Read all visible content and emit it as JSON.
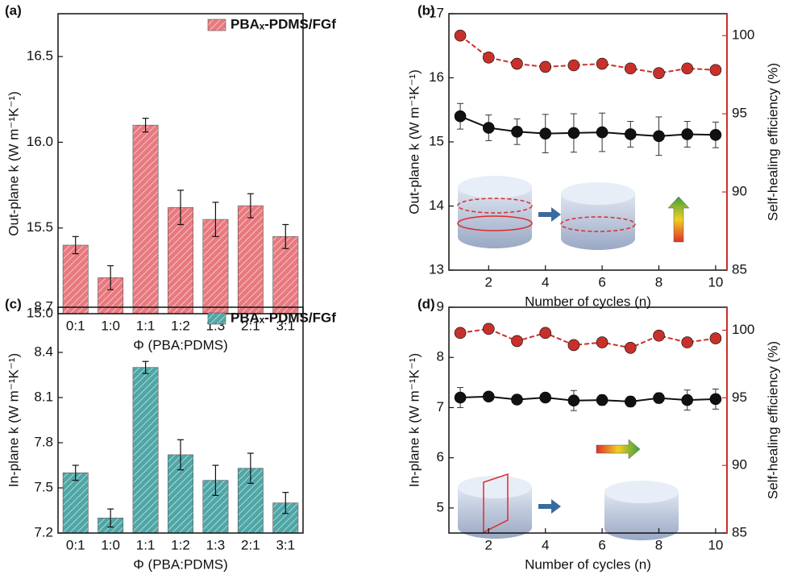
{
  "chart_data": [
    {
      "type": "bar",
      "title": "(a)",
      "xlabel": "Φ (PBA:PDMS)",
      "ylabel": "Out-plane k (W m⁻¹K⁻¹)",
      "categories": [
        "0:1",
        "1:0",
        "1:1",
        "1:2",
        "1:3",
        "2:1",
        "3:1"
      ],
      "series": [
        {
          "name": "PBAₓ-PDMS/FGf",
          "color": "#e8797f",
          "values": [
            15.4,
            15.21,
            16.1,
            15.62,
            15.55,
            15.63,
            15.45
          ],
          "errors": [
            0.05,
            0.07,
            0.04,
            0.1,
            0.1,
            0.07,
            0.07
          ]
        }
      ],
      "ylim": [
        15.0,
        16.75
      ],
      "yticks": [
        {
          "value": 15,
          "label": "15.0"
        },
        15.5,
        {
          "value": 16,
          "label": "16.0"
        },
        16.5
      ],
      "legend": "upper right"
    },
    {
      "type": "line",
      "title": "(b)",
      "xlabel": "Number of cycles (n)",
      "ylabel": "Out-plane k (W m⁻¹K⁻¹)",
      "y2label": "Self-healing efficiency (%)",
      "x": [
        1,
        2,
        3,
        4,
        5,
        6,
        7,
        8,
        9,
        10
      ],
      "series": [
        {
          "color": "#111111",
          "values": [
            15.4,
            15.22,
            15.16,
            15.13,
            15.14,
            15.15,
            15.12,
            15.09,
            15.12,
            15.11
          ],
          "errors": [
            0.2,
            0.2,
            0.2,
            0.3,
            0.3,
            0.3,
            0.2,
            0.3,
            0.2,
            0.2
          ]
        },
        {
          "color": "#c8312b",
          "axis": "y2",
          "values": [
            100.0,
            98.6,
            98.2,
            98.0,
            98.1,
            98.2,
            97.9,
            97.6,
            97.9,
            97.8
          ]
        }
      ],
      "xlim": [
        0.6,
        10.4
      ],
      "xticks": [
        2,
        4,
        6,
        8,
        10
      ],
      "ylim": [
        13,
        17
      ],
      "yticks": [
        13,
        14,
        15,
        16,
        17
      ],
      "y2lim": [
        85,
        101.4
      ],
      "y2ticks": [
        85,
        90,
        95,
        100
      ]
    },
    {
      "type": "bar",
      "title": "(c)",
      "xlabel": "Φ (PBA:PDMS)",
      "ylabel": "In-plane k (W m⁻¹K⁻¹)",
      "categories": [
        "0:1",
        "1:0",
        "1:1",
        "1:2",
        "1:3",
        "2:1",
        "3:1"
      ],
      "series": [
        {
          "name": "PBAₓ-PDMS/FGf",
          "color": "#4fa6a6",
          "values": [
            7.6,
            7.3,
            8.3,
            7.72,
            7.55,
            7.63,
            7.4
          ],
          "errors": [
            0.05,
            0.06,
            0.04,
            0.1,
            0.1,
            0.1,
            0.07
          ]
        }
      ],
      "ylim": [
        7.2,
        8.7
      ],
      "yticks": [
        7.2,
        7.5,
        7.8,
        8.1,
        8.4,
        8.7
      ],
      "legend": "upper right"
    },
    {
      "type": "line",
      "title": "(d)",
      "xlabel": "Number of cycles (n)",
      "ylabel": "In-plane k (W m⁻¹K⁻¹)",
      "y2label": "Self-healing efficiency (%)",
      "x": [
        1,
        2,
        3,
        4,
        5,
        6,
        7,
        8,
        9,
        10
      ],
      "series": [
        {
          "color": "#111111",
          "values": [
            7.2,
            7.22,
            7.16,
            7.2,
            7.14,
            7.15,
            7.12,
            7.19,
            7.15,
            7.17
          ],
          "errors": [
            0.2,
            0.05,
            0.05,
            0.05,
            0.2,
            0.1,
            0.1,
            0.1,
            0.2,
            0.2
          ]
        },
        {
          "color": "#c8312b",
          "axis": "y2",
          "values": [
            99.8,
            100.1,
            99.2,
            99.8,
            98.9,
            99.1,
            98.7,
            99.6,
            99.1,
            99.4
          ]
        }
      ],
      "xlim": [
        0.6,
        10.4
      ],
      "xticks": [
        2,
        4,
        6,
        8,
        10
      ],
      "ylim": [
        4.5,
        9
      ],
      "yticks": [
        5,
        6,
        7,
        8,
        9
      ],
      "y2lim": [
        85,
        101.7
      ],
      "y2ticks": [
        85,
        90,
        95,
        100
      ]
    }
  ]
}
